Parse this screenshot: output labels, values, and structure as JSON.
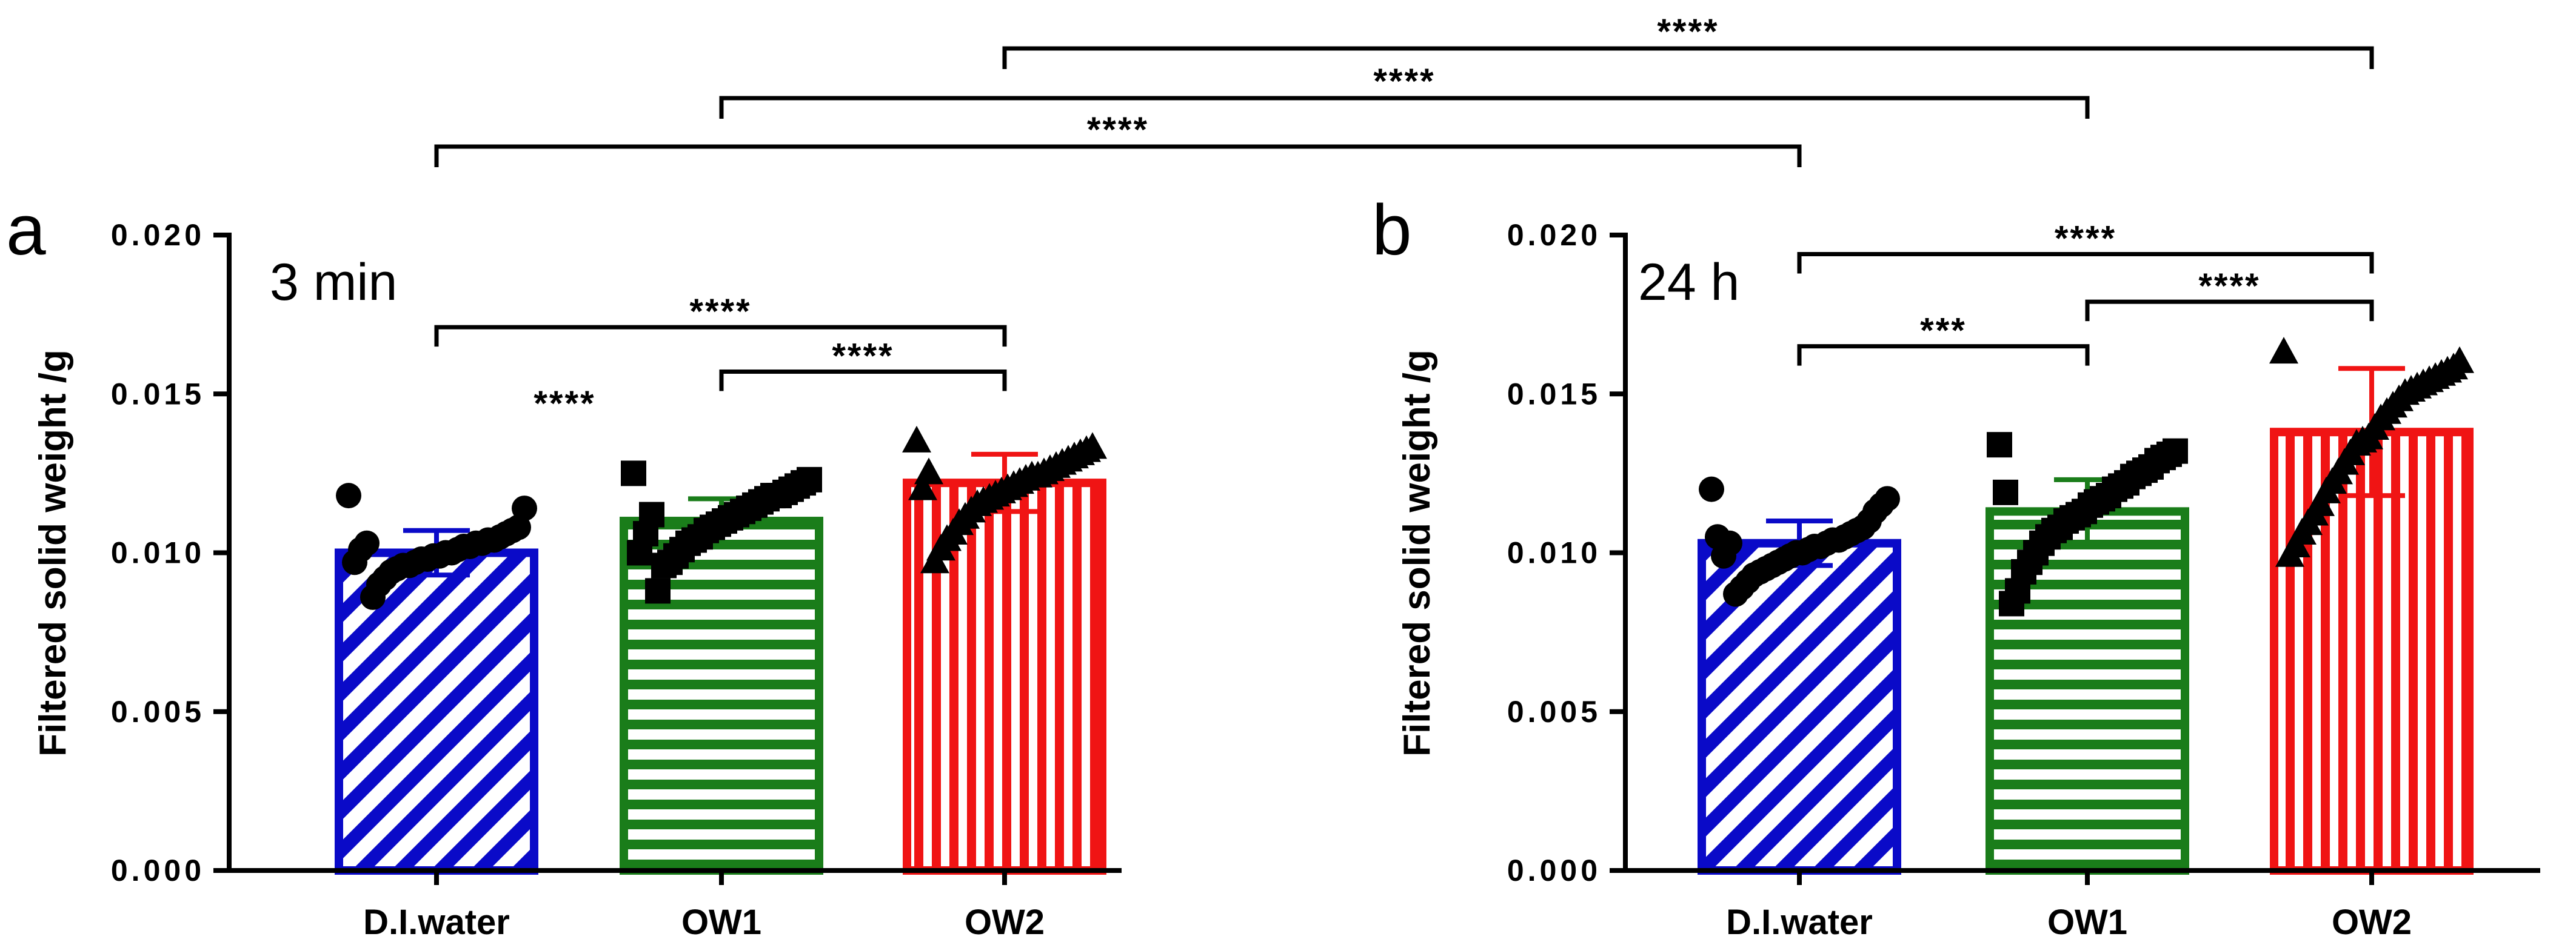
{
  "chart_data": [
    {
      "type": "bar",
      "panel": "a",
      "time_label": "3 min",
      "ylabel": "Filtered solid weight /g",
      "ylim": [
        0,
        0.02
      ],
      "y_ticks": [
        "0.000",
        "0.005",
        "0.010",
        "0.015",
        "0.020"
      ],
      "categories": [
        "D.I.water",
        "OW1",
        "OW2"
      ],
      "values": [
        0.01,
        0.011,
        0.0122
      ],
      "errors": [
        0.0007,
        0.0007,
        0.0009
      ],
      "colors": [
        "#0a0ac8",
        "#1a7d1a",
        "#f01414"
      ],
      "patterns": [
        "diagonal",
        "horizontal",
        "vertical"
      ],
      "markers": [
        "circle",
        "square",
        "triangle"
      ],
      "points": [
        [
          0.0118,
          0.0114,
          0.0108,
          0.0107,
          0.0106,
          0.0105,
          0.0104,
          0.0104,
          0.0103,
          0.0103,
          0.0102,
          0.0102,
          0.0101,
          0.01,
          0.01,
          0.0099,
          0.0099,
          0.0098,
          0.0098,
          0.0097,
          0.0096,
          0.0096,
          0.0095,
          0.0094,
          0.0092,
          0.009,
          0.0086,
          0.0103,
          0.0101,
          0.0097
        ],
        [
          0.0125,
          0.0123,
          0.0122,
          0.0121,
          0.012,
          0.0119,
          0.0118,
          0.0118,
          0.0117,
          0.0116,
          0.0115,
          0.0114,
          0.0113,
          0.0112,
          0.0111,
          0.011,
          0.0109,
          0.0108,
          0.0107,
          0.0105,
          0.0104,
          0.0103,
          0.0101,
          0.0099,
          0.0097,
          0.0096,
          0.0088,
          0.0112,
          0.0106,
          0.01
        ],
        [
          0.0135,
          0.0133,
          0.0132,
          0.0131,
          0.013,
          0.0129,
          0.0128,
          0.0127,
          0.0126,
          0.0125,
          0.0124,
          0.0124,
          0.0123,
          0.0122,
          0.0121,
          0.012,
          0.0119,
          0.0118,
          0.0117,
          0.0116,
          0.0115,
          0.0113,
          0.0111,
          0.0109,
          0.0106,
          0.0104,
          0.0101,
          0.0097,
          0.0125,
          0.012
        ]
      ],
      "brackets": [
        {
          "from": 0,
          "to": 2,
          "label": "****",
          "y": 0.0171
        },
        {
          "from": 1,
          "to": 2,
          "label": "****",
          "y": 0.0157
        }
      ],
      "annotations": [
        {
          "text": "****",
          "x": 0.45,
          "y": 0.0147
        }
      ]
    },
    {
      "type": "bar",
      "panel": "b",
      "time_label": "24 h",
      "ylabel": "Filtered solid weight /g",
      "ylim": [
        0,
        0.02
      ],
      "y_ticks": [
        "0.000",
        "0.005",
        "0.010",
        "0.015",
        "0.020"
      ],
      "categories": [
        "D.I.water",
        "OW1",
        "OW2"
      ],
      "values": [
        0.0103,
        0.0113,
        0.0138
      ],
      "errors": [
        0.0007,
        0.001,
        0.002
      ],
      "colors": [
        "#0a0ac8",
        "#1a7d1a",
        "#f01414"
      ],
      "patterns": [
        "diagonal",
        "horizontal",
        "vertical"
      ],
      "markers": [
        "circle",
        "square",
        "triangle"
      ],
      "points": [
        [
          0.012,
          0.0117,
          0.0115,
          0.0113,
          0.011,
          0.0108,
          0.0107,
          0.0106,
          0.0105,
          0.0104,
          0.0104,
          0.0103,
          0.0102,
          0.0102,
          0.0101,
          0.01,
          0.01,
          0.0099,
          0.0098,
          0.0097,
          0.0096,
          0.0095,
          0.0094,
          0.0093,
          0.0091,
          0.0089,
          0.0087,
          0.0103,
          0.0099,
          0.0105
        ],
        [
          0.0134,
          0.0132,
          0.0131,
          0.013,
          0.0129,
          0.0127,
          0.0126,
          0.0125,
          0.0124,
          0.0122,
          0.0121,
          0.012,
          0.0118,
          0.0117,
          0.0116,
          0.0115,
          0.0113,
          0.0112,
          0.0111,
          0.011,
          0.0108,
          0.0107,
          0.0105,
          0.0103,
          0.01,
          0.0097,
          0.0094,
          0.0088,
          0.0084,
          0.0119
        ],
        [
          0.0163,
          0.016,
          0.0158,
          0.0157,
          0.0156,
          0.0155,
          0.0154,
          0.0153,
          0.0152,
          0.0151,
          0.015,
          0.0148,
          0.0146,
          0.0144,
          0.0142,
          0.0139,
          0.0136,
          0.0135,
          0.0134,
          0.0131,
          0.0128,
          0.0125,
          0.0122,
          0.0119,
          0.0115,
          0.0112,
          0.0109,
          0.0106,
          0.0102,
          0.0099
        ]
      ],
      "brackets": [
        {
          "from": 0,
          "to": 2,
          "label": "****",
          "y": 0.0194
        },
        {
          "from": 1,
          "to": 2,
          "label": "****",
          "y": 0.0179
        },
        {
          "from": 0,
          "to": 1,
          "label": "***",
          "y": 0.0165
        }
      ],
      "annotations": []
    }
  ],
  "cross_panel_brackets": [
    {
      "from": "a.OW2",
      "to": "b.OW2",
      "label": "****"
    },
    {
      "from": "a.OW1",
      "to": "b.OW1",
      "label": "****"
    },
    {
      "from": "a.D.I.water",
      "to": "b.D.I.water",
      "label": "****"
    }
  ]
}
